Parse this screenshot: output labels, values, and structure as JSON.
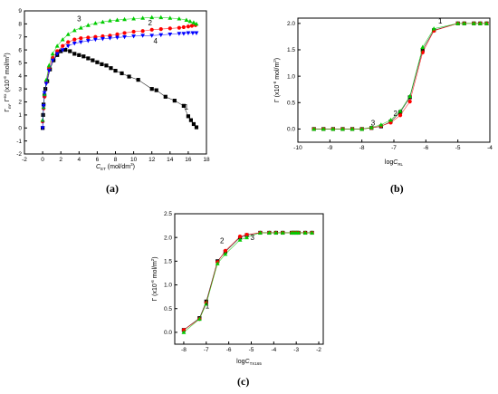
{
  "panels": [
    {
      "id": "a",
      "label": "(a)",
      "chart_data": {
        "type": "scatter",
        "ylabel_html": "Γ<tspan font-size='4.5' dy='2'>m</tspan><tspan dy='-2'>, Γ</tspan><tspan font-size='4.5' dy='-3'>ex</tspan><tspan dy='3'> (x10</tspan><tspan font-size='4.5' dy='-3'>-6</tspan><tspan dy='3'> mol/m</tspan><tspan font-size='4.5' dy='-3'>2</tspan><tspan dy='3'>)</tspan>",
        "xlabel_html": "<tspan font-style='italic'>C</tspan><tspan font-size='4.5' dy='2'>ET</tspan><tspan dy='-2'> (mol/dm</tspan><tspan font-size='4.5' dy='-3'>3</tspan><tspan dy='3'>)</tspan>",
        "xlim": [
          -2,
          18
        ],
        "ylim": [
          -2,
          9
        ],
        "xticks": [
          -2,
          0,
          2,
          4,
          6,
          8,
          10,
          12,
          14,
          16,
          18
        ],
        "yticks": [
          -2,
          -1,
          0,
          1,
          2,
          3,
          4,
          5,
          6,
          7,
          8,
          9
        ],
        "series": [
          {
            "label": "1",
            "color": "#000000",
            "marker": "square",
            "x": [
              0.0,
              0.05,
              0.1,
              0.2,
              0.3,
              0.5,
              0.8,
              1.2,
              1.6,
              2.0,
              2.5,
              3.0,
              3.5,
              4.0,
              4.5,
              5.0,
              5.5,
              6.0,
              6.5,
              7.0,
              7.5,
              8.0,
              8.7,
              9.5,
              10.5,
              12.0,
              12.5,
              13.5,
              14.5,
              15.5,
              16.0,
              16.3,
              16.6,
              16.9
            ],
            "y": [
              0.0,
              1.0,
              1.8,
              2.5,
              3.0,
              3.6,
              4.5,
              5.2,
              5.6,
              5.9,
              6.0,
              5.9,
              5.7,
              5.6,
              5.5,
              5.35,
              5.2,
              5.05,
              4.9,
              4.8,
              4.6,
              4.4,
              4.2,
              3.95,
              3.7,
              3.0,
              2.9,
              2.4,
              2.1,
              1.7,
              0.9,
              0.6,
              0.3,
              0.05
            ]
          },
          {
            "label": "2",
            "color": "#ff0000",
            "marker": "circle",
            "x": [
              0.0,
              0.1,
              0.2,
              0.4,
              0.7,
              1.1,
              1.6,
              2.2,
              2.8,
              3.5,
              4.2,
              5.0,
              5.8,
              6.6,
              7.4,
              8.2,
              9.0,
              10.0,
              11.0,
              12.0,
              13.0,
              14.0,
              15.0,
              15.5,
              16.0,
              16.4,
              16.8
            ],
            "y": [
              0.5,
              1.5,
              2.4,
              3.5,
              4.6,
              5.4,
              5.9,
              6.3,
              6.6,
              6.8,
              6.9,
              6.95,
              7.0,
              7.05,
              7.1,
              7.2,
              7.3,
              7.4,
              7.45,
              7.55,
              7.6,
              7.65,
              7.7,
              7.75,
              7.8,
              7.85,
              7.9
            ]
          },
          {
            "label": "3",
            "color": "#00cc00",
            "marker": "triangle-up",
            "x": [
              0.0,
              0.1,
              0.2,
              0.4,
              0.7,
              1.1,
              1.6,
              2.2,
              2.8,
              3.5,
              4.2,
              5.0,
              5.8,
              6.6,
              7.4,
              8.2,
              9.0,
              10.0,
              11.0,
              12.0,
              13.0,
              14.0,
              15.0,
              15.8,
              16.2,
              16.6,
              16.9
            ],
            "y": [
              0.6,
              1.6,
              2.6,
              3.7,
              4.8,
              5.7,
              6.3,
              6.8,
              7.2,
              7.5,
              7.7,
              7.9,
              8.05,
              8.15,
              8.25,
              8.3,
              8.35,
              8.4,
              8.45,
              8.5,
              8.5,
              8.45,
              8.4,
              8.3,
              8.2,
              8.1,
              8.0
            ]
          },
          {
            "label": "4",
            "color": "#0000ff",
            "marker": "triangle-down",
            "x": [
              0.0,
              0.1,
              0.2,
              0.4,
              0.7,
              1.1,
              1.6,
              2.2,
              2.8,
              3.5,
              4.2,
              5.0,
              5.8,
              6.6,
              7.4,
              8.2,
              9.0,
              10.0,
              11.0,
              12.0,
              13.0,
              14.0,
              15.0,
              15.5,
              16.0,
              16.5,
              16.9
            ],
            "y": [
              0.0,
              1.7,
              2.7,
              3.4,
              4.4,
              5.2,
              5.7,
              6.0,
              6.3,
              6.5,
              6.6,
              6.7,
              6.8,
              6.85,
              6.9,
              6.95,
              7.0,
              7.05,
              7.1,
              7.1,
              7.15,
              7.2,
              7.25,
              7.25,
              7.3,
              7.3,
              7.3
            ]
          }
        ],
        "curve_labels": [
          {
            "text": "1",
            "x": 15.8,
            "y": 1.4
          },
          {
            "text": "2",
            "x": 11.8,
            "y": 7.9
          },
          {
            "text": "3",
            "x": 4.0,
            "y": 8.2
          },
          {
            "text": "4",
            "x": 12.4,
            "y": 6.5
          }
        ]
      }
    },
    {
      "id": "b",
      "label": "(b)",
      "chart_data": {
        "type": "line",
        "ylabel_html": "Γ (x10<tspan font-size='4.5' dy='-3'>-6</tspan><tspan dy='3'> mol/m</tspan><tspan font-size='4.5' dy='-3'>2</tspan><tspan dy='3'>)</tspan>",
        "xlabel_html": "log<tspan font-style='italic'>C</tspan><tspan font-size='4.5' dy='2'>RL</tspan>",
        "xlim": [
          -10,
          -4
        ],
        "ylim": [
          -0.25,
          2.1
        ],
        "xticks": [
          -10,
          -9,
          -8,
          -7,
          -6,
          -5,
          -4
        ],
        "yticks": [
          0.0,
          0.5,
          1.0,
          1.5,
          2.0
        ],
        "yticks_labels": [
          "0.0",
          "0.5",
          "1.0",
          "1.5",
          "2.0"
        ],
        "series": [
          {
            "label": "1",
            "color": "#000000",
            "marker": "square",
            "x": [
              -9.5,
              -9.2,
              -8.9,
              -8.6,
              -8.3,
              -8.0,
              -7.7,
              -7.4,
              -7.1,
              -6.8,
              -6.5,
              -6.1,
              -5.75,
              -5.0,
              -4.8,
              -4.5,
              -4.3,
              -4.1
            ],
            "y": [
              0.0,
              0.0,
              0.0,
              0.0,
              0.0,
              0.0,
              0.02,
              0.05,
              0.14,
              0.32,
              0.6,
              1.5,
              1.87,
              2.0,
              2.0,
              2.0,
              2.0,
              2.0
            ]
          },
          {
            "label": "2",
            "color": "#ff0000",
            "marker": "circle",
            "x": [
              -9.5,
              -9.2,
              -8.9,
              -8.6,
              -8.3,
              -8.0,
              -7.7,
              -7.4,
              -7.1,
              -6.8,
              -6.5,
              -6.1,
              -5.75,
              -5.0,
              -4.8,
              -4.5,
              -4.3,
              -4.1
            ],
            "y": [
              0.0,
              0.0,
              0.0,
              0.0,
              0.0,
              0.0,
              0.02,
              0.06,
              0.12,
              0.26,
              0.52,
              1.45,
              1.86,
              2.0,
              2.0,
              2.0,
              2.0,
              2.0
            ]
          },
          {
            "label": "3",
            "color": "#00cc00",
            "marker": "triangle-up",
            "x": [
              -9.5,
              -9.2,
              -8.9,
              -8.6,
              -8.3,
              -8.0,
              -7.7,
              -7.4,
              -7.1,
              -6.8,
              -6.5,
              -6.1,
              -5.75,
              -5.0,
              -4.8,
              -4.5,
              -4.3,
              -4.1
            ],
            "y": [
              0.0,
              0.0,
              0.0,
              0.0,
              0.0,
              0.0,
              0.03,
              0.08,
              0.17,
              0.34,
              0.62,
              1.55,
              1.9,
              2.0,
              2.0,
              2.0,
              2.0,
              2.0
            ]
          }
        ],
        "curve_labels": [
          {
            "text": "1",
            "x": -5.55,
            "y": 2.0
          },
          {
            "text": "2",
            "x": -6.95,
            "y": 0.25
          },
          {
            "text": "3",
            "x": -7.65,
            "y": 0.07
          }
        ]
      }
    },
    {
      "id": "c",
      "label": "(c)",
      "chart_data": {
        "type": "line",
        "ylabel_html": "Γ (x10<tspan font-size='4.5' dy='-3'>-6</tspan><tspan dy='3'> mol/m</tspan><tspan font-size='4.5' dy='-3'>2</tspan><tspan dy='3'>)</tspan>",
        "xlabel_html": "log<tspan font-style='italic'>C</tspan><tspan font-size='4.5' dy='2'>TX165</tspan>",
        "xlim": [
          -8.4,
          -1.8
        ],
        "ylim": [
          -0.25,
          2.5
        ],
        "xticks": [
          -8,
          -7,
          -6,
          -5,
          -4,
          -3,
          -2
        ],
        "yticks": [
          0.0,
          0.5,
          1.0,
          1.5,
          2.0,
          2.5
        ],
        "yticks_labels": [
          "0.0",
          "0.5",
          "1.0",
          "1.5",
          "2.0",
          "2.5"
        ],
        "series": [
          {
            "label": "1",
            "color": "#000000",
            "marker": "square",
            "x": [
              -8.0,
              -7.3,
              -7.0,
              -6.5,
              -6.15,
              -5.5,
              -5.2,
              -4.6,
              -4.2,
              -3.9,
              -3.6,
              -3.2,
              -3.1,
              -3.0,
              -2.9,
              -2.6,
              -2.3
            ],
            "y": [
              0.05,
              0.3,
              0.65,
              1.5,
              1.7,
              2.0,
              2.05,
              2.1,
              2.1,
              2.1,
              2.1,
              2.1,
              2.1,
              2.1,
              2.1,
              2.1,
              2.1
            ]
          },
          {
            "label": "2",
            "color": "#ff0000",
            "marker": "circle",
            "x": [
              -8.0,
              -7.3,
              -7.0,
              -6.5,
              -6.15,
              -5.5,
              -5.2,
              -4.6,
              -4.2,
              -3.9,
              -3.6,
              -3.2,
              -3.1,
              -3.0,
              -2.9,
              -2.6,
              -2.3
            ],
            "y": [
              0.05,
              0.28,
              0.62,
              1.48,
              1.72,
              2.02,
              2.06,
              2.1,
              2.1,
              2.1,
              2.1,
              2.1,
              2.1,
              2.1,
              2.1,
              2.1,
              2.1
            ]
          },
          {
            "label": "3",
            "color": "#00cc00",
            "marker": "triangle-up",
            "x": [
              -8.0,
              -7.3,
              -7.0,
              -6.5,
              -6.15,
              -5.5,
              -5.2,
              -4.6,
              -4.2,
              -3.9,
              -3.6,
              -3.2,
              -3.1,
              -3.0,
              -2.9,
              -2.6,
              -2.3
            ],
            "y": [
              0.0,
              0.28,
              0.6,
              1.45,
              1.65,
              1.95,
              2.0,
              2.1,
              2.1,
              2.1,
              2.1,
              2.1,
              2.1,
              2.1,
              2.1,
              2.1,
              2.1
            ]
          }
        ],
        "curve_labels": [
          {
            "text": "1",
            "x": -6.95,
            "y": 0.5
          },
          {
            "text": "2",
            "x": -6.3,
            "y": 1.88
          },
          {
            "text": "3",
            "x": -4.95,
            "y": 1.95
          }
        ]
      }
    }
  ]
}
